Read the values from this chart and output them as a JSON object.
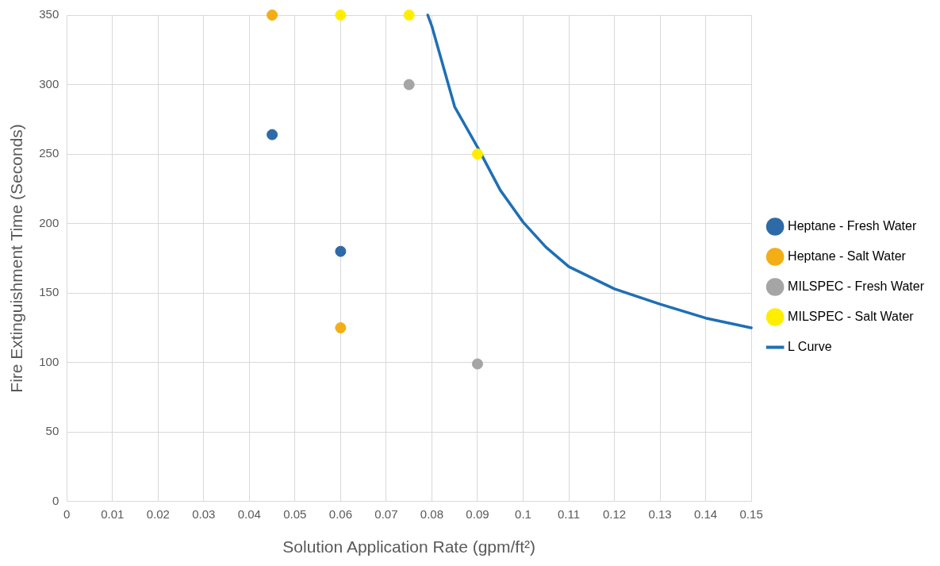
{
  "chart_data": {
    "type": "scatter",
    "xlabel": "Solution Application Rate (gpm/ft²)",
    "ylabel": "Fire Extinguishment Time (Seconds)",
    "xlim": [
      0,
      0.15
    ],
    "xticks": [
      0,
      0.01,
      0.02,
      0.03,
      0.04,
      0.05,
      0.06,
      0.07,
      0.08,
      0.09,
      0.1,
      0.11,
      0.12,
      0.13,
      0.14,
      0.15
    ],
    "ylim": [
      0,
      350
    ],
    "yticks": [
      0,
      50,
      100,
      150,
      200,
      250,
      300,
      350
    ],
    "grid": true,
    "legend": "right",
    "marker": "circle",
    "series": [
      {
        "name": "Heptane - Fresh Water",
        "color": "#2e6aa8",
        "x": [
          0.045,
          0.06
        ],
        "values": [
          264,
          180
        ]
      },
      {
        "name": "Heptane - Salt Water",
        "color": "#f2ae14",
        "x": [
          0.045,
          0.06
        ],
        "values": [
          350,
          125
        ]
      },
      {
        "name": "MILSPEC - Fresh Water",
        "color": "#a5a5a5",
        "x": [
          0.075,
          0.09
        ],
        "values": [
          300,
          99
        ]
      },
      {
        "name": "MILSPEC - Salt Water",
        "color": "#ffee00",
        "x": [
          0.06,
          0.075,
          0.09
        ],
        "values": [
          350,
          350,
          250
        ]
      },
      {
        "name": "L Curve",
        "type": "line",
        "marker": "none",
        "color": "#1f6fb5",
        "x": [
          0.0791,
          0.08,
          0.085,
          0.09,
          0.095,
          0.1,
          0.105,
          0.11,
          0.12,
          0.13,
          0.14,
          0.15
        ],
        "values": [
          350,
          342,
          284,
          255,
          224,
          201,
          183,
          169,
          153,
          142,
          132,
          125
        ]
      }
    ]
  }
}
